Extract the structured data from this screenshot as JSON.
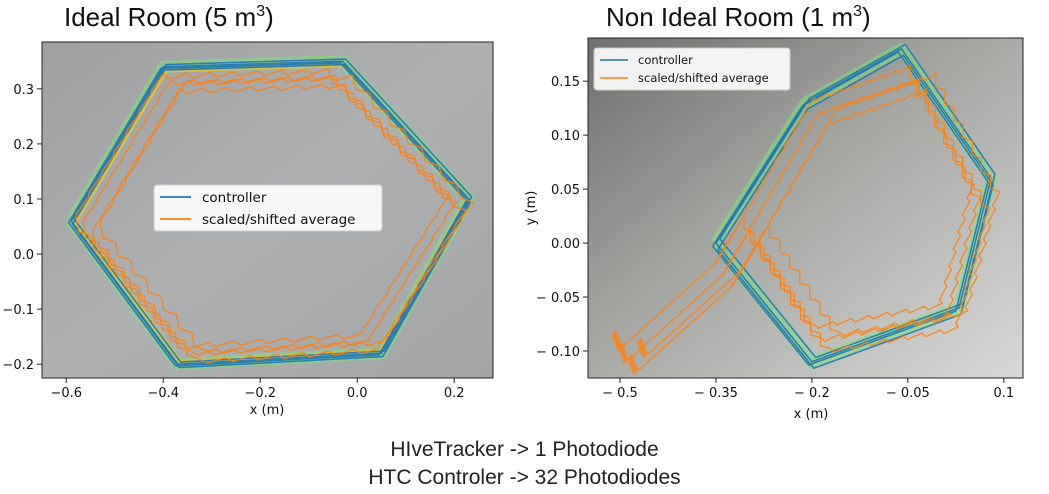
{
  "caption": {
    "line1": "HIveTracker -> 1 Photodiode",
    "line2": "HTC Controler -> 32 Photodiodes"
  },
  "colors": {
    "controller": "#1f77b4",
    "average": "#ff7f0e",
    "glow": "#7fe07a",
    "yellow": "#e5c13a"
  },
  "chart_data": [
    {
      "type": "line",
      "title_prefix": "Ideal Room (5 m",
      "title_sup": "3",
      "title_suffix": ")",
      "xlabel": "x (m)",
      "ylabel": "",
      "xlim": [
        -0.65,
        0.28
      ],
      "ylim": [
        -0.225,
        0.385
      ],
      "xticks": [
        -0.6,
        -0.4,
        -0.2,
        0.0,
        0.2
      ],
      "xtick_labels": [
        "−0.6",
        "−0.4",
        "−0.2",
        "0.0",
        "0.2"
      ],
      "yticks": [
        -0.2,
        -0.1,
        0.0,
        0.1,
        0.2,
        0.3
      ],
      "ytick_labels": [
        "−0.2",
        "−0.1",
        "0.0",
        "0.1",
        "0.2",
        "0.3"
      ],
      "legend": {
        "position": "center",
        "items": [
          "controller",
          "scaled/shifted average"
        ]
      },
      "series": [
        {
          "name": "controller",
          "x": [
            -0.59,
            -0.4,
            -0.03,
            0.23,
            0.05,
            -0.37,
            -0.59
          ],
          "y": [
            0.06,
            0.34,
            0.35,
            0.1,
            -0.18,
            -0.2,
            0.06
          ]
        },
        {
          "name": "scaled/shifted average",
          "x": [
            -0.57,
            -0.39,
            -0.05,
            0.2,
            0.02,
            -0.35,
            -0.57
          ],
          "y": [
            0.05,
            0.31,
            0.32,
            0.09,
            -0.16,
            -0.18,
            0.05
          ]
        }
      ]
    },
    {
      "type": "line",
      "title_prefix": "Non Ideal Room (1 m",
      "title_sup": "3",
      "title_suffix": ")",
      "xlabel": "x (m)",
      "ylabel": "y (m)",
      "xlim": [
        -0.55,
        0.13
      ],
      "ylim": [
        -0.125,
        0.19
      ],
      "xticks": [
        -0.5,
        -0.35,
        -0.2,
        -0.05,
        0.1
      ],
      "xtick_labels": [
        "− 0.5",
        "− 0.35",
        "− 0.2",
        "− 0.05",
        "0.1"
      ],
      "yticks": [
        -0.1,
        -0.05,
        0.0,
        0.05,
        0.1,
        0.15
      ],
      "ytick_labels": [
        "− 0.10",
        "− 0.05",
        "0.00",
        "0.05",
        "0.10",
        "0.15"
      ],
      "legend": {
        "position": "top-left",
        "items": [
          "controller",
          "scaled/shifted average"
        ]
      },
      "series": [
        {
          "name": "controller",
          "x": [
            -0.35,
            -0.21,
            -0.06,
            0.08,
            0.03,
            -0.2,
            -0.35
          ],
          "y": [
            0.0,
            0.13,
            0.18,
            0.06,
            -0.06,
            -0.11,
            0.0
          ]
        },
        {
          "name": "scaled/shifted average",
          "x": [
            -0.5,
            -0.49,
            -0.34,
            -0.3,
            -0.19,
            -0.04,
            0.06,
            0.01,
            -0.19,
            -0.3
          ],
          "y": [
            -0.095,
            -0.11,
            -0.03,
            0.01,
            0.12,
            0.15,
            0.04,
            -0.07,
            -0.09,
            0.01
          ]
        }
      ]
    }
  ]
}
